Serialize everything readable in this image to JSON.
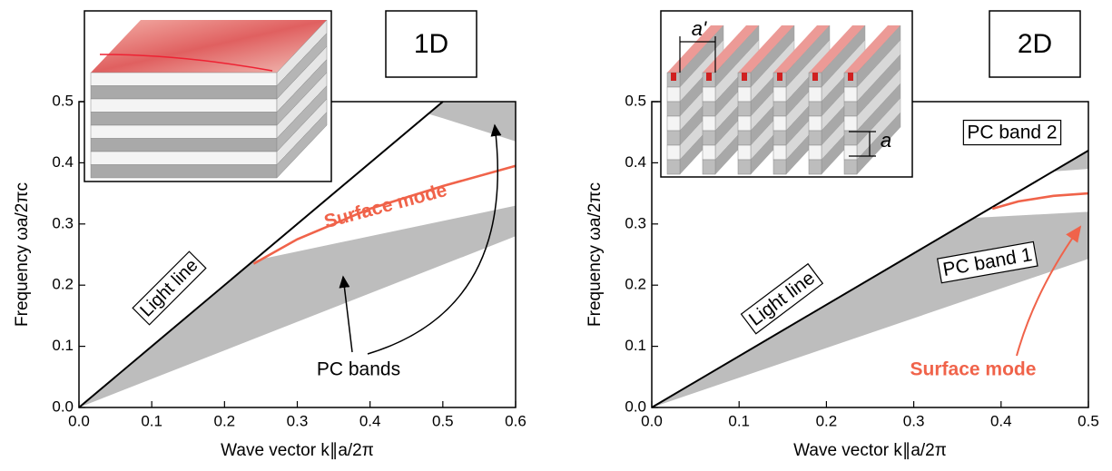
{
  "chart_data": [
    {
      "type": "line",
      "panel_label": "1D",
      "xlabel": "Wave vector  k∥a/2π",
      "ylabel": "Frequency  ωa/2πc",
      "xlim": [
        0,
        0.6
      ],
      "ylim": [
        0,
        0.5
      ],
      "xticks": [
        {
          "value": 0,
          "label": "0.0"
        },
        0.1,
        0.2,
        0.3,
        0.4,
        0.5,
        0.6
      ],
      "yticks": [
        {
          "value": 0,
          "label": "0.0"
        },
        0.1,
        0.2,
        0.3,
        0.4,
        0.5
      ],
      "band_color": "#bdbdbd",
      "bands": [
        {
          "x": [
            0,
            0.24,
            0.6
          ],
          "lower": [
            0,
            0.112,
            0.28
          ],
          "upper": [
            0,
            0.24,
            0.33
          ]
        },
        {
          "x": [
            0.48,
            0.5,
            0.6
          ],
          "lower": [
            0.48,
            0.473,
            0.435
          ],
          "upper": [
            0.48,
            0.5,
            0.5
          ]
        }
      ],
      "series": [
        {
          "color": "#000000",
          "x": [
            0,
            0.5
          ],
          "values": [
            0,
            0.5
          ]
        },
        {
          "color": "#f0634a",
          "x": [
            0.24,
            0.3,
            0.4,
            0.5,
            0.6
          ],
          "values": [
            0.235,
            0.275,
            0.325,
            0.362,
            0.395
          ]
        }
      ],
      "annotations": [
        {
          "text": "Light line",
          "color": "#000000"
        },
        {
          "text": "Surface mode",
          "color": "#f0634a"
        },
        {
          "text": "PC bands",
          "color": "#000000"
        }
      ]
    },
    {
      "type": "line",
      "panel_label": "2D",
      "xlabel": "Wave vector  k∥a/2π",
      "ylabel": "Frequency  ωa/2πc",
      "xlim": [
        0,
        0.5
      ],
      "ylim": [
        0,
        0.5
      ],
      "xticks": [
        {
          "value": 0,
          "label": "0.0"
        },
        0.1,
        0.2,
        0.3,
        0.4,
        0.5
      ],
      "yticks": [
        {
          "value": 0,
          "label": "0.0"
        },
        0.1,
        0.2,
        0.3,
        0.4,
        0.5
      ],
      "band_color": "#bdbdbd",
      "bands": [
        {
          "x": [
            0,
            0.37,
            0.5
          ],
          "lower": [
            0,
            0.18,
            0.243
          ],
          "upper": [
            0,
            0.31,
            0.32
          ]
        },
        {
          "x": [
            0.46,
            0.5
          ],
          "lower": [
            0.386,
            0.39
          ],
          "upper": [
            0.386,
            0.42
          ]
        }
      ],
      "series": [
        {
          "color": "#000000",
          "x": [
            0,
            0.5
          ],
          "values": [
            0,
            0.42
          ]
        },
        {
          "color": "#f0634a",
          "x": [
            0.39,
            0.42,
            0.46,
            0.5
          ],
          "values": [
            0.325,
            0.337,
            0.346,
            0.35
          ]
        }
      ],
      "annotations": [
        {
          "text": "Light line",
          "color": "#000000"
        },
        {
          "text": "PC band 1",
          "color": "#000000"
        },
        {
          "text": "PC band 2",
          "color": "#000000"
        },
        {
          "text": "Surface mode",
          "color": "#f0634a"
        }
      ],
      "inset_labels": [
        "a'",
        "a"
      ]
    }
  ]
}
